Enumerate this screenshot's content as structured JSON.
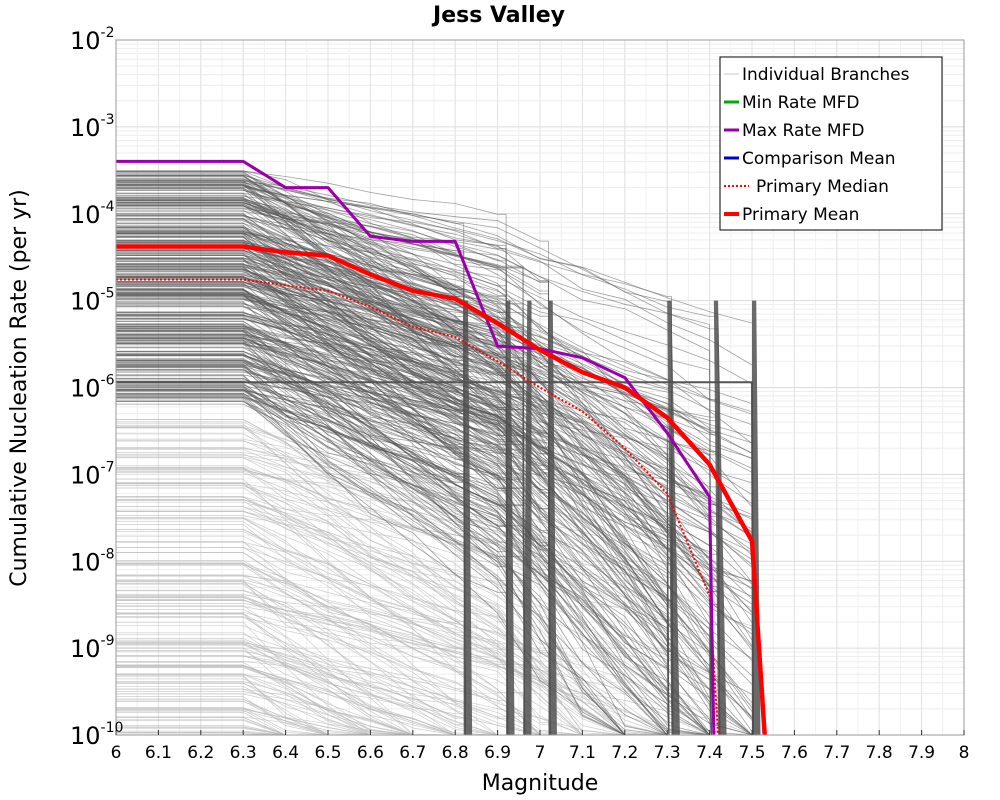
{
  "chart_data": {
    "type": "line",
    "title": "Jess Valley",
    "xlabel": "Magnitude",
    "ylabel": "Cumulative Nucleation Rate (per yr)",
    "x_scale": "linear",
    "y_scale": "log",
    "xlim": [
      6,
      8
    ],
    "ylim": [
      1e-10,
      0.01
    ],
    "x_ticks": [
      "6",
      "6.1",
      "6.2",
      "6.3",
      "6.4",
      "6.5",
      "6.6",
      "6.7",
      "6.8",
      "6.9",
      "7",
      "7.1",
      "7.2",
      "7.3",
      "7.4",
      "7.5",
      "7.6",
      "7.7",
      "7.8",
      "7.9",
      "8"
    ],
    "y_ticks": [
      {
        "base": "10",
        "exp": "-2",
        "value": 0.01
      },
      {
        "base": "10",
        "exp": "-3",
        "value": 0.001
      },
      {
        "base": "10",
        "exp": "-4",
        "value": 0.0001
      },
      {
        "base": "10",
        "exp": "-5",
        "value": 1e-05
      },
      {
        "base": "10",
        "exp": "-6",
        "value": 1e-06
      },
      {
        "base": "10",
        "exp": "-7",
        "value": 1e-07
      },
      {
        "base": "10",
        "exp": "-8",
        "value": 1e-08
      },
      {
        "base": "10",
        "exp": "-9",
        "value": 1e-09
      },
      {
        "base": "10",
        "exp": "-10",
        "value": 1e-10
      }
    ],
    "grid": true,
    "legend_position": "top-right",
    "legend": [
      {
        "label": "Individual Branches",
        "color": "#c8c8c8",
        "style": "solid"
      },
      {
        "label": "Min Rate MFD",
        "color": "#00aa00",
        "style": "solid"
      },
      {
        "label": "Max Rate MFD",
        "color": "#9900aa",
        "style": "solid"
      },
      {
        "label": "Comparison Mean",
        "color": "#0000cc",
        "style": "solid"
      },
      {
        "label": "Primary Median",
        "color": "#ff0000",
        "style": "dotted"
      },
      {
        "label": "Primary Mean",
        "color": "#ff0000",
        "style": "solid"
      }
    ],
    "series": [
      {
        "name": "Max Rate MFD",
        "color": "#9900aa",
        "x": [
          6.0,
          6.3,
          6.4,
          6.5,
          6.6,
          6.7,
          6.8,
          6.9,
          7.0,
          7.1,
          7.2,
          7.3,
          7.4,
          7.41
        ],
        "y": [
          0.0004,
          0.0004,
          0.0002,
          0.0002,
          5.5e-05,
          4.8e-05,
          4.8e-05,
          3e-06,
          2.8e-06,
          2.2e-06,
          1.3e-06,
          3e-07,
          5.5e-08,
          1e-10
        ]
      },
      {
        "name": "Primary Mean",
        "color": "#ff0000",
        "x": [
          6.0,
          6.3,
          6.4,
          6.5,
          6.6,
          6.7,
          6.8,
          6.9,
          7.0,
          7.1,
          7.2,
          7.3,
          7.4,
          7.5,
          7.53
        ],
        "y": [
          4.2e-05,
          4.2e-05,
          3.6e-05,
          3.3e-05,
          2e-05,
          1.3e-05,
          1.05e-05,
          5.5e-06,
          2.7e-06,
          1.5e-06,
          1e-06,
          4.5e-07,
          1.3e-07,
          1.7e-08,
          1e-10
        ]
      },
      {
        "name": "Primary Median",
        "color": "#ff0000",
        "x": [
          6.0,
          6.3,
          6.4,
          6.5,
          6.6,
          6.7,
          6.8,
          6.9,
          7.0,
          7.1,
          7.2,
          7.3,
          7.4,
          7.42
        ],
        "y": [
          1.75e-05,
          1.75e-05,
          1.5e-05,
          1.3e-05,
          8.5e-06,
          5e-06,
          3.8e-06,
          2e-06,
          1e-06,
          5.3e-07,
          2e-07,
          6e-08,
          4e-09,
          1e-10
        ]
      },
      {
        "name": "Individual Branches",
        "color": "#555555",
        "x": [
          6.0,
          6.3,
          6.5,
          6.7,
          6.9,
          7.1,
          7.3,
          7.5
        ],
        "y": [
          1.15e-06,
          1.15e-06,
          1.15e-06,
          1.15e-06,
          1.15e-06,
          1.15e-06,
          1.15e-06,
          1.15e-06
        ]
      }
    ]
  }
}
